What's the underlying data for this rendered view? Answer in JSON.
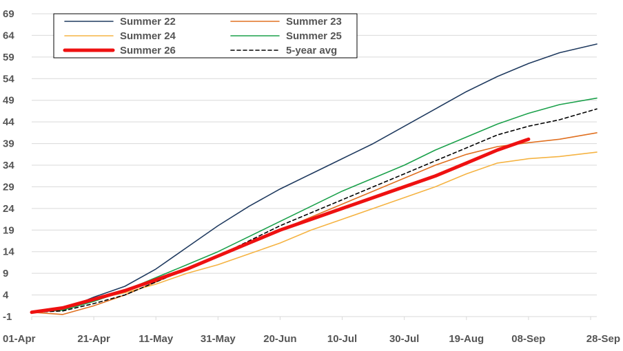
{
  "chart_data": {
    "type": "line",
    "title": "",
    "xlabel": "",
    "ylabel": "",
    "x_ticks": [
      "01-Apr",
      "21-Apr",
      "11-May",
      "31-May",
      "20-Jun",
      "10-Jul",
      "30-Jul",
      "19-Aug",
      "08-Sep",
      "28-Sep"
    ],
    "y_ticks": [
      "-1",
      "4",
      "9",
      "14",
      "19",
      "24",
      "29",
      "34",
      "39",
      "44",
      "49",
      "54",
      "59",
      "64",
      "69"
    ],
    "ylim": [
      -1,
      69
    ],
    "xlim": [
      "01-Apr",
      "30-Sep"
    ],
    "grid": "horizontal",
    "legend_position": "top-left",
    "series": [
      {
        "name": "Summer 22",
        "color": "#1f3a5f",
        "style": "solid",
        "points": [
          [
            "01-Apr",
            0
          ],
          [
            "11-Apr",
            0.5
          ],
          [
            "21-Apr",
            3.5
          ],
          [
            "01-May",
            6
          ],
          [
            "11-May",
            10
          ],
          [
            "21-May",
            15
          ],
          [
            "31-May",
            20
          ],
          [
            "10-Jun",
            24.5
          ],
          [
            "20-Jun",
            28.5
          ],
          [
            "30-Jun",
            32
          ],
          [
            "10-Jul",
            35.5
          ],
          [
            "20-Jul",
            39
          ],
          [
            "30-Jul",
            43
          ],
          [
            "09-Aug",
            47
          ],
          [
            "19-Aug",
            51
          ],
          [
            "29-Aug",
            54.5
          ],
          [
            "08-Sep",
            57.5
          ],
          [
            "18-Sep",
            60
          ],
          [
            "30-Sep",
            62
          ]
        ]
      },
      {
        "name": "Summer 23",
        "color": "#e07020",
        "style": "solid",
        "points": [
          [
            "01-Apr",
            0
          ],
          [
            "11-Apr",
            -0.5
          ],
          [
            "21-Apr",
            1.5
          ],
          [
            "01-May",
            4
          ],
          [
            "11-May",
            7
          ],
          [
            "21-May",
            10
          ],
          [
            "31-May",
            13
          ],
          [
            "10-Jun",
            16
          ],
          [
            "20-Jun",
            19
          ],
          [
            "30-Jun",
            22
          ],
          [
            "10-Jul",
            25
          ],
          [
            "20-Jul",
            28
          ],
          [
            "30-Jul",
            31
          ],
          [
            "09-Aug",
            34
          ],
          [
            "19-Aug",
            36.5
          ],
          [
            "29-Aug",
            38.3
          ],
          [
            "08-Sep",
            39.2
          ],
          [
            "18-Sep",
            40
          ],
          [
            "30-Sep",
            41.5
          ]
        ]
      },
      {
        "name": "Summer 24",
        "color": "#f5b342",
        "style": "solid",
        "points": [
          [
            "01-Apr",
            0
          ],
          [
            "11-Apr",
            1
          ],
          [
            "21-Apr",
            3
          ],
          [
            "01-May",
            4.5
          ],
          [
            "11-May",
            6.5
          ],
          [
            "21-May",
            9
          ],
          [
            "31-May",
            11
          ],
          [
            "10-Jun",
            13.5
          ],
          [
            "20-Jun",
            16
          ],
          [
            "30-Jun",
            19
          ],
          [
            "10-Jul",
            21.5
          ],
          [
            "20-Jul",
            24
          ],
          [
            "30-Jul",
            26.5
          ],
          [
            "09-Aug",
            29
          ],
          [
            "19-Aug",
            32
          ],
          [
            "29-Aug",
            34.5
          ],
          [
            "08-Sep",
            35.5
          ],
          [
            "18-Sep",
            36
          ],
          [
            "30-Sep",
            37
          ]
        ]
      },
      {
        "name": "Summer 25",
        "color": "#1aa04a",
        "style": "solid",
        "points": [
          [
            "01-Apr",
            0
          ],
          [
            "11-Apr",
            0.5
          ],
          [
            "21-Apr",
            2.5
          ],
          [
            "01-May",
            5
          ],
          [
            "11-May",
            8
          ],
          [
            "21-May",
            11
          ],
          [
            "31-May",
            14
          ],
          [
            "10-Jun",
            17.5
          ],
          [
            "20-Jun",
            21
          ],
          [
            "30-Jun",
            24.5
          ],
          [
            "10-Jul",
            28
          ],
          [
            "20-Jul",
            31
          ],
          [
            "30-Jul",
            34
          ],
          [
            "09-Aug",
            37.5
          ],
          [
            "19-Aug",
            40.5
          ],
          [
            "29-Aug",
            43.5
          ],
          [
            "08-Sep",
            46
          ],
          [
            "18-Sep",
            48
          ],
          [
            "30-Sep",
            49.5
          ]
        ]
      },
      {
        "name": "Summer 26",
        "color": "#ee1111",
        "style": "thick",
        "points": [
          [
            "01-Apr",
            0
          ],
          [
            "11-Apr",
            1
          ],
          [
            "21-Apr",
            3
          ],
          [
            "01-May",
            5
          ],
          [
            "11-May",
            7.5
          ],
          [
            "21-May",
            10
          ],
          [
            "31-May",
            13
          ],
          [
            "10-Jun",
            16
          ],
          [
            "20-Jun",
            19
          ],
          [
            "30-Jun",
            21.5
          ],
          [
            "10-Jul",
            24
          ],
          [
            "20-Jul",
            26.5
          ],
          [
            "30-Jul",
            29
          ],
          [
            "09-Aug",
            31.5
          ],
          [
            "19-Aug",
            34.5
          ],
          [
            "29-Aug",
            37.5
          ],
          [
            "08-Sep",
            40
          ]
        ]
      },
      {
        "name": "5-year avg",
        "color": "#000000",
        "style": "dashed",
        "points": [
          [
            "01-Apr",
            0
          ],
          [
            "11-Apr",
            0.3
          ],
          [
            "21-Apr",
            2
          ],
          [
            "01-May",
            4
          ],
          [
            "11-May",
            7
          ],
          [
            "21-May",
            10
          ],
          [
            "31-May",
            13
          ],
          [
            "10-Jun",
            16.5
          ],
          [
            "20-Jun",
            20
          ],
          [
            "30-Jun",
            23
          ],
          [
            "10-Jul",
            26
          ],
          [
            "20-Jul",
            29
          ],
          [
            "30-Jul",
            32
          ],
          [
            "09-Aug",
            35
          ],
          [
            "19-Aug",
            38
          ],
          [
            "29-Aug",
            41
          ],
          [
            "08-Sep",
            43
          ],
          [
            "18-Sep",
            44.5
          ],
          [
            "30-Sep",
            47
          ]
        ]
      }
    ]
  }
}
